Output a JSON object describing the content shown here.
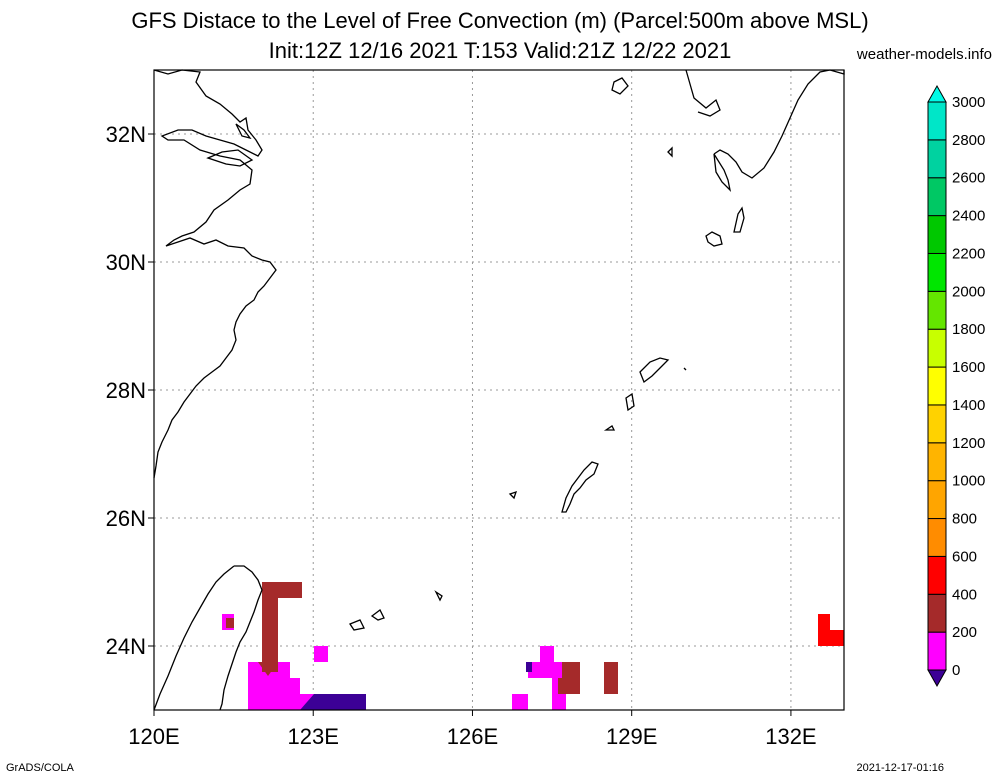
{
  "title_line1": "GFS Distace to the Level of Free Convection (m) (Parcel:500m above MSL)",
  "title_line2": "Init:12Z 12/16 2021 T:153 Valid:21Z 12/22 2021",
  "credit": "weather-models.info",
  "footer_left": "GrADS/COLA",
  "footer_right": "2021-12-17-01:16",
  "map": {
    "lon_range": [
      120,
      133
    ],
    "lat_range": [
      23,
      33
    ],
    "lon_ticks": [
      {
        "value": 120,
        "label": "120E"
      },
      {
        "value": 123,
        "label": "123E"
      },
      {
        "value": 126,
        "label": "126E"
      },
      {
        "value": 129,
        "label": "129E"
      },
      {
        "value": 132,
        "label": "132E"
      }
    ],
    "lat_ticks": [
      {
        "value": 32,
        "label": "32N"
      },
      {
        "value": 30,
        "label": "30N"
      },
      {
        "value": 28,
        "label": "28N"
      },
      {
        "value": 26,
        "label": "26N"
      },
      {
        "value": 24,
        "label": "24N"
      }
    ],
    "grid": true
  },
  "colorbar": {
    "colors": [
      "#3c0096",
      "#ff00ff",
      "#a52a2a",
      "#ff0000",
      "#ff8c00",
      "#ffa500",
      "#ffb400",
      "#ffd200",
      "#ffff00",
      "#c8ff00",
      "#64e600",
      "#00e600",
      "#00c800",
      "#00c864",
      "#00d2a0",
      "#00e6c8",
      "#00fae6"
    ],
    "labels": [
      "0",
      "200",
      "400",
      "600",
      "800",
      "1000",
      "1200",
      "1400",
      "1600",
      "1800",
      "2000",
      "2200",
      "2400",
      "2600",
      "2800",
      "3000"
    ]
  }
}
